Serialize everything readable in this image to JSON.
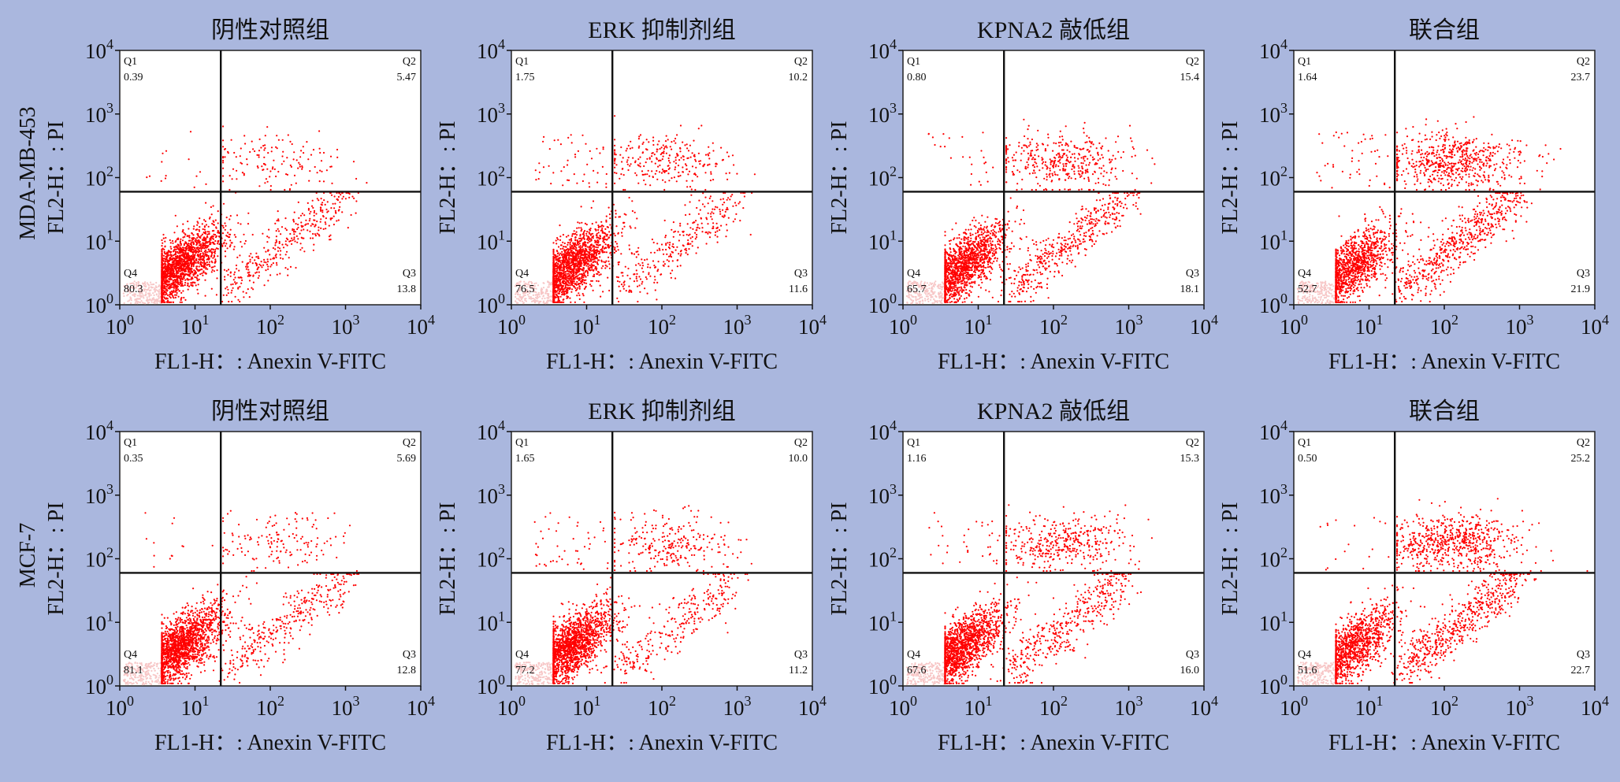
{
  "figure_bg": "#aab7de",
  "point_color": "#ff0000",
  "chart_data": [
    {
      "type": "scatter",
      "row": "MDA-MB-453",
      "title": "阴性对照组",
      "xlabel": "FL1-H：: Anexin V-FITC",
      "ylabel": "FL2-H：: PI",
      "scale": "log",
      "xlim": [
        1,
        10000
      ],
      "ylim": [
        1,
        10000
      ],
      "x_ticks": [
        "10^0",
        "10^1",
        "10^2",
        "10^3",
        "10^4"
      ],
      "y_ticks": [
        "10^0",
        "10^1",
        "10^2",
        "10^3",
        "10^4"
      ],
      "gates": {
        "x": 22,
        "y": 60
      },
      "quadrants": {
        "Q1": "0.39",
        "Q2": "5.47",
        "Q3": "13.8",
        "Q4": "80.3"
      }
    },
    {
      "type": "scatter",
      "row": "MDA-MB-453",
      "title": "ERK 抑制剂组",
      "xlabel": "FL1-H：: Anexin V-FITC",
      "ylabel": "FL2-H：: PI",
      "scale": "log",
      "xlim": [
        1,
        10000
      ],
      "ylim": [
        1,
        10000
      ],
      "x_ticks": [
        "10^0",
        "10^1",
        "10^2",
        "10^3",
        "10^4"
      ],
      "y_ticks": [
        "10^0",
        "10^1",
        "10^2",
        "10^3",
        "10^4"
      ],
      "gates": {
        "x": 22,
        "y": 60
      },
      "quadrants": {
        "Q1": "1.75",
        "Q2": "10.2",
        "Q3": "11.6",
        "Q4": "76.5"
      }
    },
    {
      "type": "scatter",
      "row": "MDA-MB-453",
      "title": "KPNA2 敲低组",
      "xlabel": "FL1-H：: Anexin V-FITC",
      "ylabel": "FL2-H：: PI",
      "scale": "log",
      "xlim": [
        1,
        10000
      ],
      "ylim": [
        1,
        10000
      ],
      "x_ticks": [
        "10^0",
        "10^1",
        "10^2",
        "10^3",
        "10^4"
      ],
      "y_ticks": [
        "10^0",
        "10^1",
        "10^2",
        "10^3",
        "10^4"
      ],
      "gates": {
        "x": 22,
        "y": 60
      },
      "quadrants": {
        "Q1": "0.80",
        "Q2": "15.4",
        "Q3": "18.1",
        "Q4": "65.7"
      }
    },
    {
      "type": "scatter",
      "row": "MDA-MB-453",
      "title": "联合组",
      "xlabel": "FL1-H：: Anexin V-FITC",
      "ylabel": "FL2-H：: PI",
      "scale": "log",
      "xlim": [
        1,
        10000
      ],
      "ylim": [
        1,
        10000
      ],
      "x_ticks": [
        "10^0",
        "10^1",
        "10^2",
        "10^3",
        "10^4"
      ],
      "y_ticks": [
        "10^0",
        "10^1",
        "10^2",
        "10^3",
        "10^4"
      ],
      "gates": {
        "x": 22,
        "y": 60
      },
      "quadrants": {
        "Q1": "1.64",
        "Q2": "23.7",
        "Q3": "21.9",
        "Q4": "52.7"
      }
    },
    {
      "type": "scatter",
      "row": "MCF-7",
      "title": "阴性对照组",
      "xlabel": "FL1-H：: Anexin V-FITC",
      "ylabel": "FL2-H：: PI",
      "scale": "log",
      "xlim": [
        1,
        10000
      ],
      "ylim": [
        1,
        10000
      ],
      "x_ticks": [
        "10^0",
        "10^1",
        "10^2",
        "10^3",
        "10^4"
      ],
      "y_ticks": [
        "10^0",
        "10^1",
        "10^2",
        "10^3",
        "10^4"
      ],
      "gates": {
        "x": 22,
        "y": 60
      },
      "quadrants": {
        "Q1": "0.35",
        "Q2": "5.69",
        "Q3": "12.8",
        "Q4": "81.1"
      }
    },
    {
      "type": "scatter",
      "row": "MCF-7",
      "title": "ERK 抑制剂组",
      "xlabel": "FL1-H：: Anexin V-FITC",
      "ylabel": "FL2-H：: PI",
      "scale": "log",
      "xlim": [
        1,
        10000
      ],
      "ylim": [
        1,
        10000
      ],
      "x_ticks": [
        "10^0",
        "10^1",
        "10^2",
        "10^3",
        "10^4"
      ],
      "y_ticks": [
        "10^0",
        "10^1",
        "10^2",
        "10^3",
        "10^4"
      ],
      "gates": {
        "x": 22,
        "y": 60
      },
      "quadrants": {
        "Q1": "1.65",
        "Q2": "10.0",
        "Q3": "11.2",
        "Q4": "77.2"
      }
    },
    {
      "type": "scatter",
      "row": "MCF-7",
      "title": "KPNA2 敲低组",
      "xlabel": "FL1-H：: Anexin V-FITC",
      "ylabel": "FL2-H：: PI",
      "scale": "log",
      "xlim": [
        1,
        10000
      ],
      "ylim": [
        1,
        10000
      ],
      "x_ticks": [
        "10^0",
        "10^1",
        "10^2",
        "10^3",
        "10^4"
      ],
      "y_ticks": [
        "10^0",
        "10^1",
        "10^2",
        "10^3",
        "10^4"
      ],
      "gates": {
        "x": 22,
        "y": 60
      },
      "quadrants": {
        "Q1": "1.16",
        "Q2": "15.3",
        "Q3": "16.0",
        "Q4": "67.6"
      }
    },
    {
      "type": "scatter",
      "row": "MCF-7",
      "title": "联合组",
      "xlabel": "FL1-H：: Anexin V-FITC",
      "ylabel": "FL2-H：: PI",
      "scale": "log",
      "xlim": [
        1,
        10000
      ],
      "ylim": [
        1,
        10000
      ],
      "x_ticks": [
        "10^0",
        "10^1",
        "10^2",
        "10^3",
        "10^4"
      ],
      "y_ticks": [
        "10^0",
        "10^1",
        "10^2",
        "10^3",
        "10^4"
      ],
      "gates": {
        "x": 22,
        "y": 60
      },
      "quadrants": {
        "Q1": "0.50",
        "Q2": "25.2",
        "Q3": "22.7",
        "Q4": "51.6"
      }
    }
  ]
}
